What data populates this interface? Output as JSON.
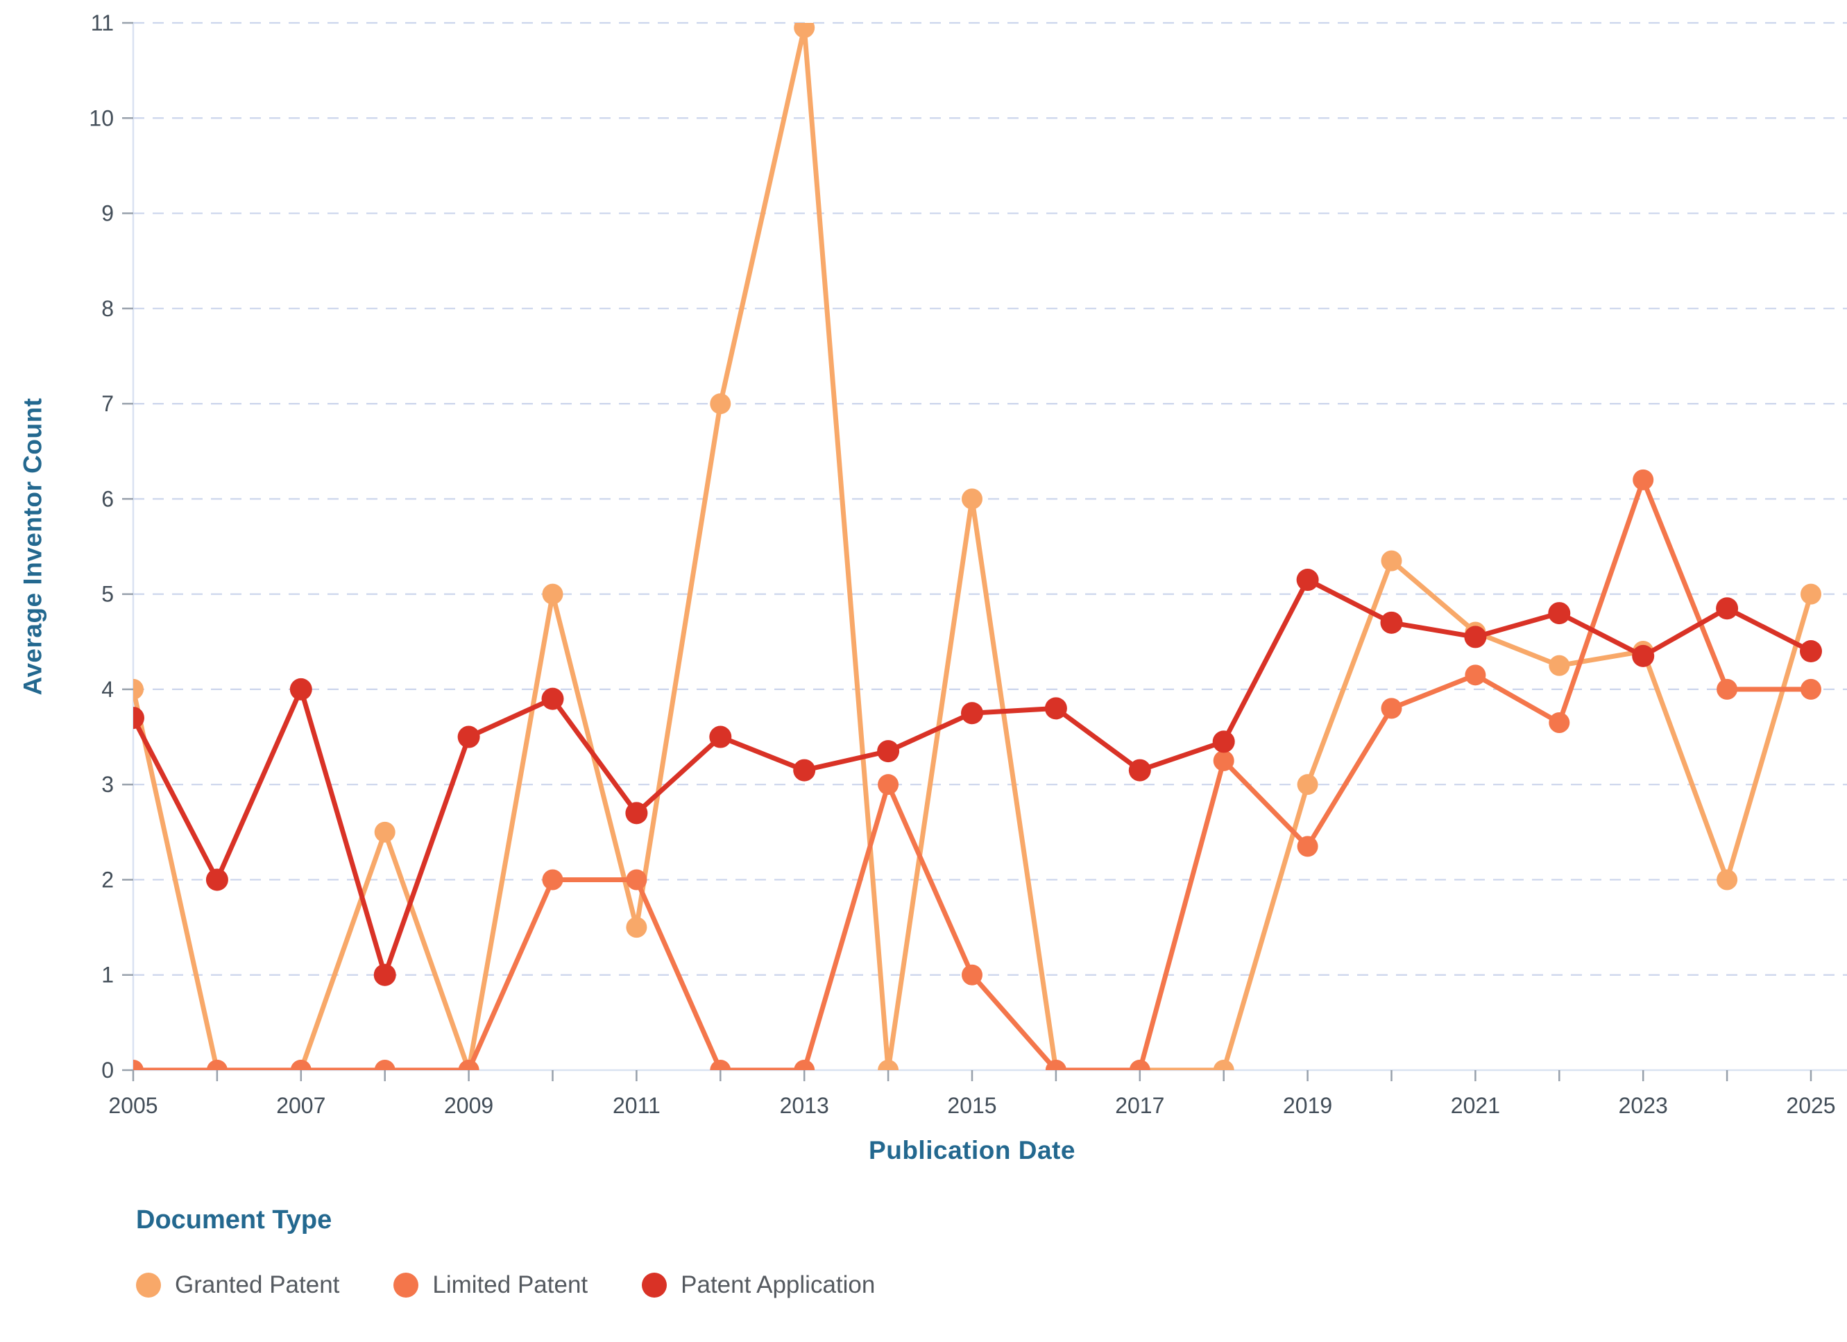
{
  "chart_data": {
    "type": "line",
    "title": "",
    "xlabel": "Publication Date",
    "ylabel": "Average Inventor Count",
    "legend_title": "Document Type",
    "x": [
      2005,
      2006,
      2007,
      2008,
      2009,
      2010,
      2011,
      2012,
      2013,
      2014,
      2015,
      2016,
      2017,
      2018,
      2019,
      2020,
      2021,
      2022,
      2023,
      2024,
      2025
    ],
    "x_tick_labels": [
      "2005",
      "2007",
      "2009",
      "2011",
      "2013",
      "2015",
      "2017",
      "2019",
      "2021",
      "2023",
      "2025"
    ],
    "y_ticks": [
      0,
      1,
      2,
      3,
      4,
      5,
      6,
      7,
      8,
      9,
      10,
      11
    ],
    "y_tick_labels": [
      "0",
      "1",
      "2",
      "3",
      "4",
      "5",
      "6",
      "7",
      "8",
      "9",
      "10",
      "11"
    ],
    "ylim": [
      0,
      11
    ],
    "grid": "horizontal-dashed",
    "legend_position": "bottom-left",
    "series": [
      {
        "name": "Granted Patent",
        "color": "#F8A869",
        "values": [
          4,
          0,
          0,
          2.5,
          0,
          5,
          1.5,
          7,
          10.95,
          0,
          6,
          0,
          0,
          0,
          3,
          5.35,
          4.6,
          4.25,
          4.4,
          2,
          5
        ]
      },
      {
        "name": "Limited Patent",
        "color": "#F4764B",
        "values": [
          0,
          0,
          0,
          0,
          0,
          2,
          2,
          0,
          0,
          3,
          1,
          0,
          0,
          3.25,
          2.35,
          3.8,
          4.15,
          3.65,
          6.2,
          4,
          4
        ]
      },
      {
        "name": "Patent Application",
        "color": "#D93226",
        "values": [
          3.7,
          2,
          4,
          1,
          3.5,
          3.9,
          2.7,
          3.5,
          3.15,
          3.35,
          3.75,
          3.8,
          3.15,
          3.45,
          5.15,
          4.7,
          4.55,
          4.8,
          4.35,
          4.85,
          4.4
        ]
      }
    ]
  },
  "style_colors": {
    "axis_line": "#D9E2F1",
    "gridline": "#CBD5EC",
    "tick_mark": "#97A0AB",
    "tick_label": "#424D58",
    "axis_title": "#23688F",
    "legend_label": "#54595F",
    "background": "#FFFFFF"
  }
}
